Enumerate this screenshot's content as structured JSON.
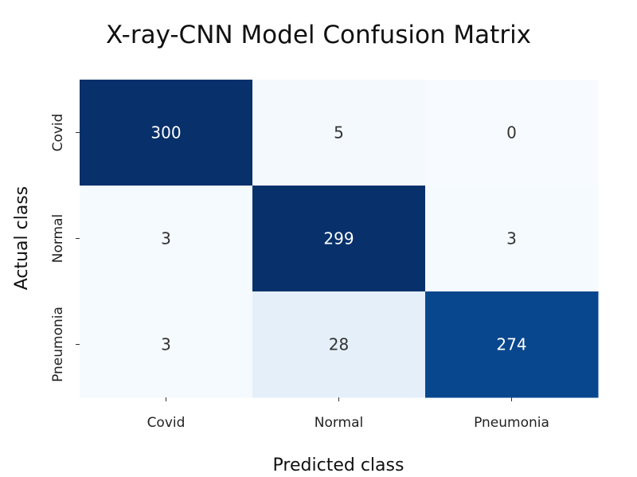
{
  "chart_data": {
    "type": "heatmap",
    "title": "X-ray-CNN Model Confusion Matrix",
    "xlabel": "Predicted class",
    "ylabel": "Actual class",
    "x_categories": [
      "Covid",
      "Normal",
      "Pneumonia"
    ],
    "y_categories": [
      "Covid",
      "Normal",
      "Pneumonia"
    ],
    "values": [
      [
        300,
        5,
        0
      ],
      [
        3,
        299,
        3
      ],
      [
        3,
        28,
        274
      ]
    ],
    "colormap": "Blues",
    "value_range": [
      0,
      300
    ],
    "colorbar": false,
    "grid": false
  }
}
